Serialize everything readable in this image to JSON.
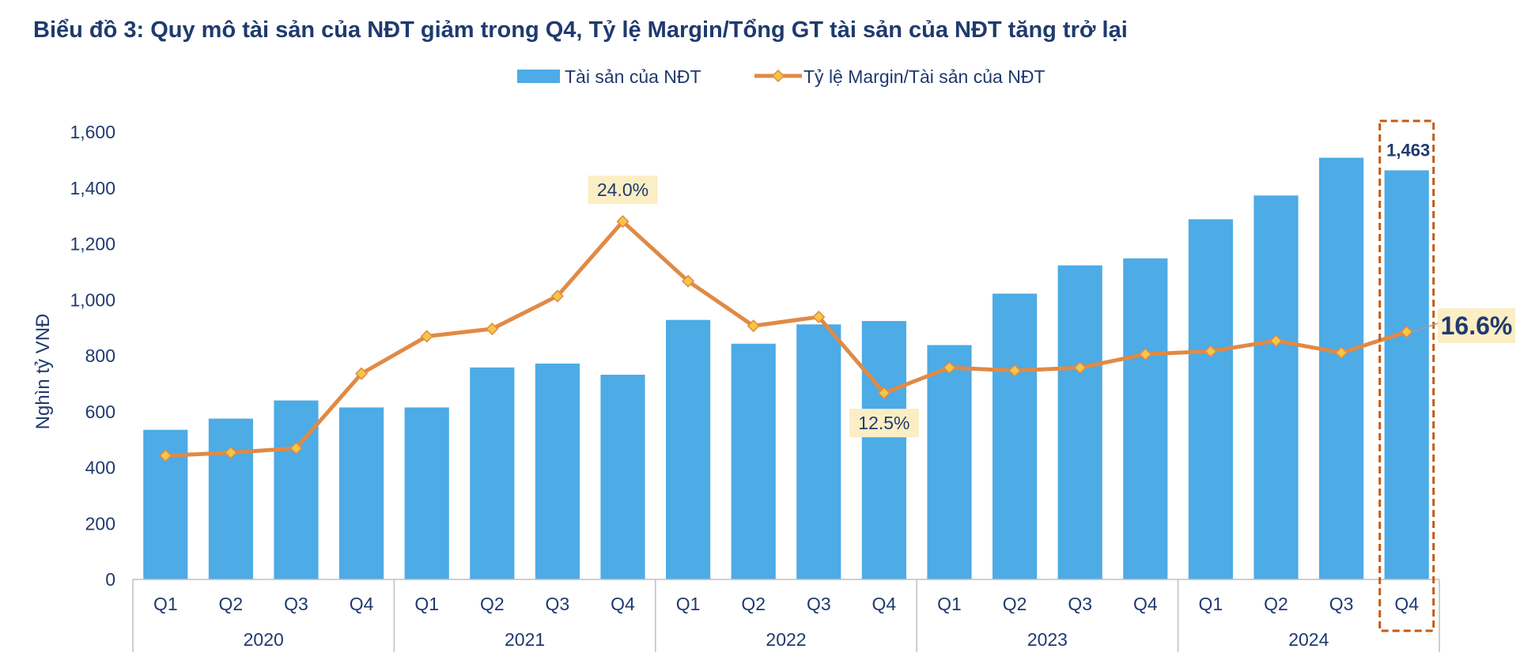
{
  "title": "Biểu đồ 3: Quy mô tài sản của NĐT giảm trong Q4, Tỷ lệ Margin/Tổng GT tài sản của NĐT tăng trở lại",
  "colors": {
    "bar": "#4dabe6",
    "line": "#e08a45",
    "marker": "#f7c548",
    "label_bg": "#fbeec4",
    "text": "#1f3a6e",
    "highlight": "#c55a11"
  },
  "chart_data": {
    "type": "bar",
    "title": "Biểu đồ 3: Quy mô tài sản của NĐT giảm trong Q4, Tỷ lệ Margin/Tổng GT tài sản của NĐT tăng trở lại",
    "ylabel": "Nghìn tỷ VNĐ",
    "ylim": [
      0,
      1600
    ],
    "yticks": [
      "0",
      "200",
      "400",
      "600",
      "800",
      "1,000",
      "1,200",
      "1,400",
      "1,600"
    ],
    "legend_position": "top",
    "categories": [
      "Q1",
      "Q2",
      "Q3",
      "Q4",
      "Q1",
      "Q2",
      "Q3",
      "Q4",
      "Q1",
      "Q2",
      "Q3",
      "Q4",
      "Q1",
      "Q2",
      "Q3",
      "Q4",
      "Q1",
      "Q2",
      "Q3",
      "Q4"
    ],
    "groups": [
      "2020",
      "2021",
      "2022",
      "2023",
      "2024"
    ],
    "series": [
      {
        "name": "Tài sản của NĐT",
        "type": "bar",
        "values": [
          535,
          575,
          640,
          615,
          615,
          758,
          772,
          732,
          928,
          843,
          912,
          924,
          838,
          1022,
          1123,
          1148,
          1288,
          1373,
          1508,
          1463
        ]
      },
      {
        "name": "Tỷ lệ Margin/Tài sản của NĐT",
        "type": "line",
        "unit": "%",
        "values": [
          8.3,
          8.5,
          8.8,
          13.8,
          16.3,
          16.8,
          19.0,
          24.0,
          20.0,
          17.0,
          17.6,
          12.5,
          14.2,
          14.0,
          14.2,
          15.1,
          15.3,
          16.0,
          15.2,
          16.6
        ]
      }
    ],
    "annotations": [
      {
        "text": "24.0%",
        "series": 1,
        "index": 7
      },
      {
        "text": "12.5%",
        "series": 1,
        "index": 11
      },
      {
        "text": "16.6%",
        "series": 1,
        "index": 19
      },
      {
        "text": "1,463",
        "series": 0,
        "index": 19
      }
    ]
  }
}
